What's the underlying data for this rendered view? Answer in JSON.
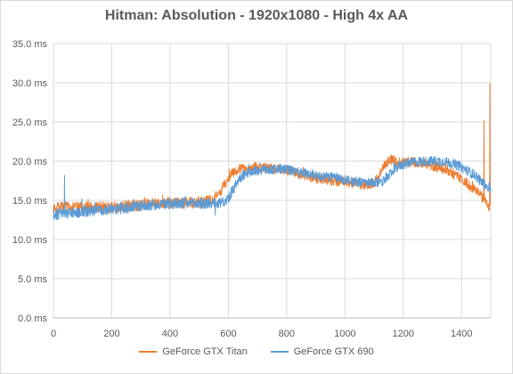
{
  "chart_data": {
    "type": "line",
    "title": "Hitman: Absolution - 1920x1080 - High 4x AA",
    "xlabel": "",
    "ylabel": "",
    "xlim": [
      0,
      1500
    ],
    "ylim": [
      0,
      35
    ],
    "x_ticks": [
      "0",
      "200",
      "400",
      "600",
      "800",
      "1000",
      "1200",
      "1400"
    ],
    "x_tick_values": [
      0,
      200,
      400,
      600,
      800,
      1000,
      1200,
      1400
    ],
    "y_ticks": [
      "0.0 ms",
      "5.0 ms",
      "10.0 ms",
      "15.0 ms",
      "20.0 ms",
      "25.0 ms",
      "30.0 ms",
      "35.0 ms"
    ],
    "y_tick_values": [
      0,
      5,
      10,
      15,
      20,
      25,
      30,
      35
    ],
    "grid": "vertical and horizontal",
    "legend_position": "bottom",
    "series": [
      {
        "name": "GeForce GTX Titan",
        "color": "#ED7D31",
        "points": [
          [
            0,
            14.0
          ],
          [
            40,
            14.1
          ],
          [
            80,
            14.1
          ],
          [
            120,
            14.1
          ],
          [
            160,
            14.2
          ],
          [
            200,
            14.1
          ],
          [
            240,
            14.2
          ],
          [
            280,
            14.3
          ],
          [
            320,
            14.5
          ],
          [
            360,
            14.7
          ],
          [
            400,
            14.7
          ],
          [
            440,
            14.6
          ],
          [
            480,
            14.7
          ],
          [
            520,
            14.8
          ],
          [
            550,
            15.2
          ],
          [
            570,
            16.0
          ],
          [
            590,
            17.2
          ],
          [
            610,
            18.4
          ],
          [
            630,
            18.9
          ],
          [
            650,
            19.1
          ],
          [
            680,
            19.2
          ],
          [
            700,
            19.3
          ],
          [
            720,
            19.2
          ],
          [
            750,
            19.0
          ],
          [
            780,
            18.9
          ],
          [
            800,
            18.8
          ],
          [
            820,
            18.6
          ],
          [
            850,
            18.3
          ],
          [
            880,
            18.0
          ],
          [
            910,
            17.8
          ],
          [
            940,
            17.6
          ],
          [
            970,
            17.5
          ],
          [
            1000,
            17.4
          ],
          [
            1030,
            17.2
          ],
          [
            1060,
            17.0
          ],
          [
            1080,
            17.0
          ],
          [
            1100,
            17.2
          ],
          [
            1120,
            18.2
          ],
          [
            1140,
            19.8
          ],
          [
            1160,
            20.2
          ],
          [
            1180,
            19.8
          ],
          [
            1200,
            19.9
          ],
          [
            1230,
            19.9
          ],
          [
            1260,
            19.8
          ],
          [
            1290,
            19.5
          ],
          [
            1320,
            19.2
          ],
          [
            1350,
            18.8
          ],
          [
            1380,
            18.2
          ],
          [
            1410,
            17.4
          ],
          [
            1440,
            16.5
          ],
          [
            1460,
            15.8
          ],
          [
            1475,
            15.2
          ],
          [
            1485,
            14.6
          ],
          [
            1490,
            14.3
          ],
          [
            1495,
            14.2
          ],
          [
            1500,
            14.2
          ]
        ],
        "spikes": [
          [
            1477,
            25.2
          ],
          [
            1497,
            29.9
          ]
        ]
      },
      {
        "name": "GeForce GTX 690",
        "color": "#5B9BD5",
        "points": [
          [
            0,
            13.2
          ],
          [
            40,
            13.3
          ],
          [
            80,
            13.5
          ],
          [
            120,
            13.6
          ],
          [
            160,
            13.8
          ],
          [
            200,
            13.9
          ],
          [
            240,
            14.0
          ],
          [
            280,
            14.2
          ],
          [
            320,
            14.4
          ],
          [
            360,
            14.5
          ],
          [
            400,
            14.6
          ],
          [
            440,
            14.6
          ],
          [
            480,
            14.6
          ],
          [
            520,
            14.6
          ],
          [
            560,
            14.6
          ],
          [
            590,
            14.8
          ],
          [
            610,
            15.8
          ],
          [
            630,
            17.2
          ],
          [
            650,
            18.2
          ],
          [
            670,
            18.6
          ],
          [
            700,
            18.8
          ],
          [
            720,
            18.9
          ],
          [
            750,
            19.0
          ],
          [
            780,
            19.0
          ],
          [
            800,
            18.9
          ],
          [
            830,
            18.7
          ],
          [
            860,
            18.5
          ],
          [
            890,
            18.3
          ],
          [
            920,
            18.1
          ],
          [
            950,
            18.0
          ],
          [
            980,
            17.8
          ],
          [
            1010,
            17.6
          ],
          [
            1040,
            17.4
          ],
          [
            1070,
            17.2
          ],
          [
            1100,
            17.2
          ],
          [
            1130,
            17.5
          ],
          [
            1150,
            18.1
          ],
          [
            1170,
            19.0
          ],
          [
            1190,
            19.5
          ],
          [
            1210,
            19.7
          ],
          [
            1240,
            19.9
          ],
          [
            1270,
            20.0
          ],
          [
            1300,
            20.0
          ],
          [
            1330,
            20.0
          ],
          [
            1360,
            19.8
          ],
          [
            1390,
            19.4
          ],
          [
            1420,
            18.8
          ],
          [
            1450,
            18.1
          ],
          [
            1470,
            17.3
          ],
          [
            1485,
            16.8
          ],
          [
            1500,
            16.5
          ]
        ],
        "spikes": [
          [
            38,
            18.2
          ],
          [
            555,
            13.1
          ]
        ]
      }
    ]
  }
}
